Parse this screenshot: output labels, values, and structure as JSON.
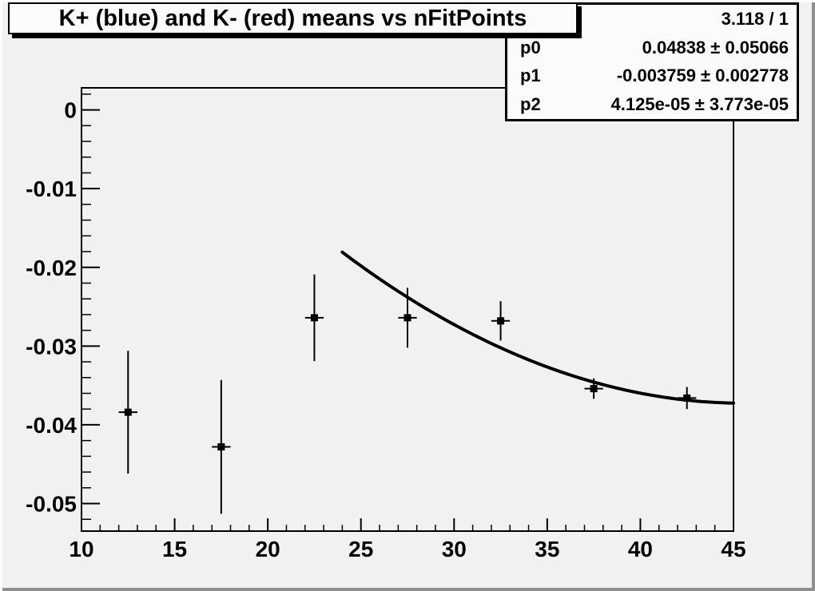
{
  "window": {
    "bg_color": "#f1f1ef",
    "highlight_color": "#fcfcfc",
    "shadow_color": "#8f8f8f",
    "pave_bg_color": "#fbfbf9",
    "line_color": "#000000"
  },
  "title_box": {
    "text": "K+ (blue) and K- (red) means vs nFitPoints"
  },
  "stats_box": {
    "chi2_over_ndf": "3.118 / 1",
    "rows": [
      {
        "label": "p0",
        "value": "0.04838 ± 0.05066"
      },
      {
        "label": "p1",
        "value": "-0.003759 ± 0.002778"
      },
      {
        "label": "p2",
        "value": "4.125e-05 ± 3.773e-05"
      }
    ]
  },
  "chart_data": {
    "type": "scatter",
    "title": "K+ (blue) and K- (red) means vs nFitPoints",
    "xlabel": "",
    "ylabel": "",
    "xlim": [
      10,
      45
    ],
    "ylim": [
      -0.0535,
      0.0028
    ],
    "grid": false,
    "legend_position": "none",
    "x_ticks": {
      "major": [
        10,
        15,
        20,
        25,
        30,
        35,
        40,
        45
      ],
      "labels": [
        "10",
        "15",
        "20",
        "25",
        "30",
        "35",
        "40",
        "45"
      ],
      "minor_step": 1
    },
    "y_ticks": {
      "major": [
        0,
        -0.01,
        -0.02,
        -0.03,
        -0.04,
        -0.05
      ],
      "labels": [
        "0",
        "-0.01",
        "-0.02",
        "-0.03",
        "-0.04",
        "-0.05"
      ],
      "minor_step": 0.002
    },
    "series": [
      {
        "name": "K means vs nFitPoints",
        "marker": "filled-square",
        "marker_size": 9,
        "color": "#000000",
        "points": [
          {
            "x": 12.5,
            "y": -0.0384,
            "ex": 0.5,
            "ey": 0.0078
          },
          {
            "x": 17.5,
            "y": -0.0428,
            "ex": 0.5,
            "ey": 0.0085
          },
          {
            "x": 22.5,
            "y": -0.0264,
            "ex": 0.5,
            "ey": 0.0055
          },
          {
            "x": 27.5,
            "y": -0.0264,
            "ex": 0.5,
            "ey": 0.0038
          },
          {
            "x": 32.5,
            "y": -0.0268,
            "ex": 0.5,
            "ey": 0.0025
          },
          {
            "x": 37.5,
            "y": -0.0354,
            "ex": 0.5,
            "ey": 0.0013
          },
          {
            "x": 42.5,
            "y": -0.0366,
            "ex": 0.5,
            "ey": 0.0014
          }
        ]
      }
    ],
    "fit_curve": {
      "type": "pol2",
      "p0": 0.04838,
      "p1": -0.003759,
      "p2": 4.125e-05,
      "x_range": [
        24,
        45
      ],
      "chi2_over_ndf": "3.118 / 1",
      "color": "#000000",
      "line_width": 4
    }
  }
}
